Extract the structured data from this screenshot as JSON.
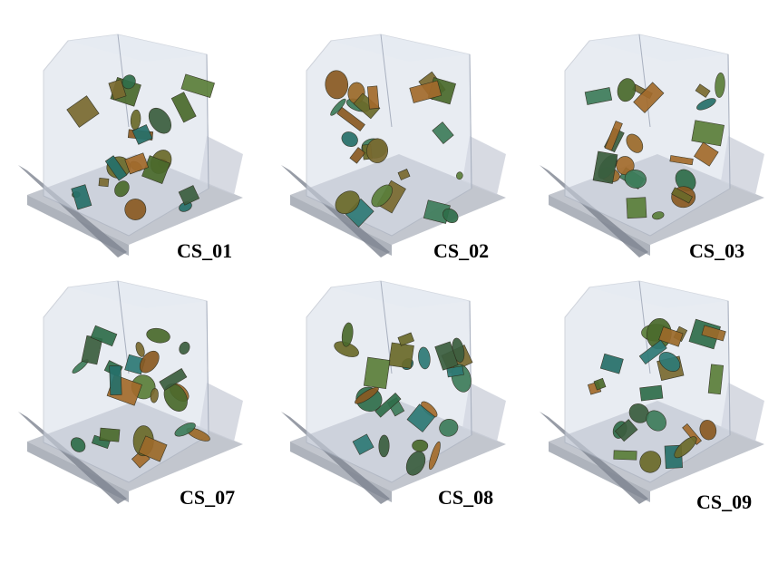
{
  "figure": {
    "panels": [
      {
        "label": "CS_01"
      },
      {
        "label": "CS_02"
      },
      {
        "label": "CS_03"
      },
      {
        "label": "CS_07"
      },
      {
        "label": "CS_08"
      },
      {
        "label": "CS_09"
      }
    ]
  }
}
